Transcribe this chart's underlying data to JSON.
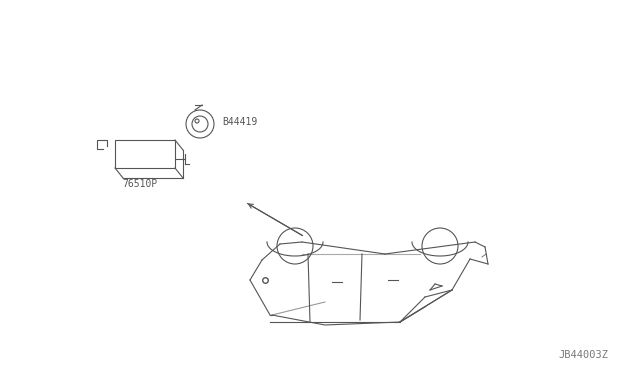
{
  "background_color": "#ffffff",
  "fig_width": 6.4,
  "fig_height": 3.72,
  "dpi": 100,
  "part_label_1": "76510P",
  "part_label_2": "B44419",
  "diagram_id": "JB44003Z",
  "text_color": "#555555",
  "line_color": "#555555",
  "line_width": 0.8
}
